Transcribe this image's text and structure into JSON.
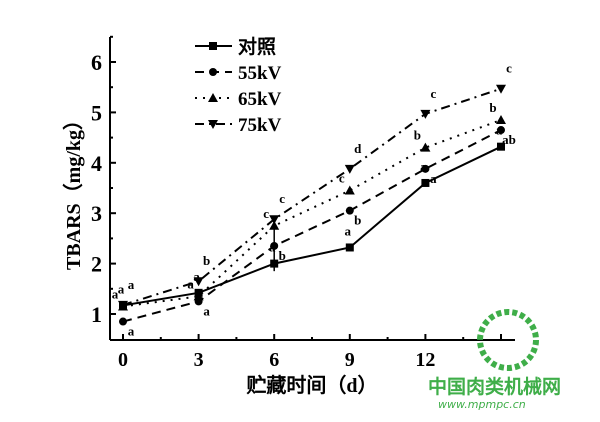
{
  "chart_data": {
    "type": "line",
    "title": "",
    "xlabel": "贮藏时间（d）",
    "ylabel": "TBARS（mg/kg）",
    "x": [
      0,
      3,
      6,
      9,
      12,
      15
    ],
    "xticks": [
      "0",
      "3",
      "6",
      "9",
      "12",
      ""
    ],
    "yticks": [
      "1",
      "2",
      "3",
      "4",
      "5",
      "6"
    ],
    "xlim": [
      -0.5,
      15.5
    ],
    "ylim": [
      0.5,
      6.5
    ],
    "legend_position": "top-left",
    "series": [
      {
        "name": "对照",
        "values": [
          1.17,
          1.42,
          2.0,
          2.32,
          3.6,
          4.32
        ],
        "marker": "square",
        "dash": "",
        "letters": [
          "a",
          "a",
          "a",
          "a",
          "a",
          "a"
        ]
      },
      {
        "name": "55kV",
        "values": [
          0.85,
          1.25,
          2.35,
          3.05,
          3.88,
          4.65
        ],
        "marker": "circle",
        "dash": "9,6",
        "letters": [
          "a",
          "a",
          "b",
          "b",
          "a",
          "ab"
        ]
      },
      {
        "name": "65kV",
        "values": [
          1.15,
          1.35,
          2.75,
          3.45,
          4.3,
          4.85
        ],
        "marker": "triangle-up",
        "dash": "2,6",
        "letters": [
          "a",
          "a",
          "c",
          "c",
          "b",
          "b"
        ]
      },
      {
        "name": "75kV",
        "values": [
          1.18,
          1.65,
          2.88,
          3.88,
          4.97,
          5.47
        ],
        "marker": "triangle-down",
        "dash": "9,5,2,5",
        "letters": [
          "a",
          "b",
          "c",
          "d",
          "c",
          "c"
        ]
      }
    ]
  },
  "watermark": {
    "name": "中国肉类机械网",
    "url": "www.mpmpc.cn",
    "color": "#3fae49"
  }
}
